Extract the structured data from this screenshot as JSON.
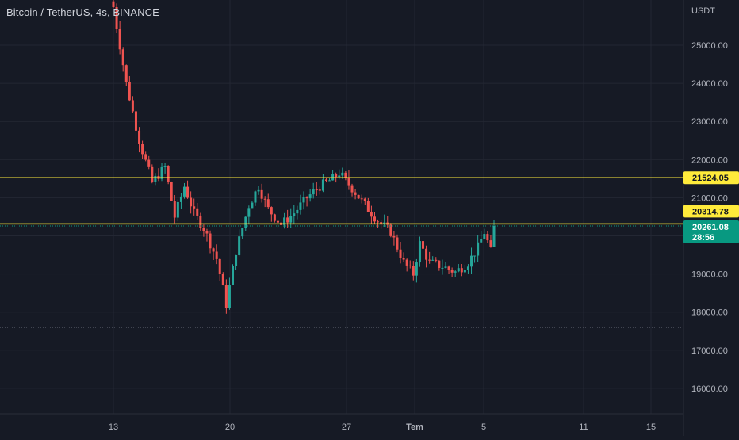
{
  "header": {
    "symbol_title": "Bitcoin / TetherUS, 4s, BINANCE"
  },
  "price_axis": {
    "currency": "USDT",
    "ticks": [
      16000,
      17000,
      18000,
      19000,
      20000,
      21000,
      22000,
      23000,
      24000,
      25000
    ]
  },
  "time_axis": {
    "labels": [
      "13",
      "20",
      "27",
      "Tem",
      "5",
      "11",
      "15"
    ]
  },
  "price_badges": {
    "upper_line": "21524.05",
    "lower_line": "20314.78",
    "last_price": "20261.08",
    "countdown": "28:56"
  },
  "colors": {
    "background": "#161a25",
    "grid": "#232733",
    "up": "#26a69a",
    "down": "#ef5350",
    "horizontal_line": "#ffeb3b",
    "last_price_badge": "#089981",
    "axis_text": "#b2b5be"
  },
  "chart_data": {
    "type": "candlestick",
    "title": "Bitcoin / TetherUS, 4s, BINANCE",
    "xlabel": "",
    "ylabel": "USDT",
    "ylim": [
      15500,
      26200
    ],
    "horizontal_lines": [
      21524.05,
      20314.78
    ],
    "dotted_support_level": 17600,
    "last_price": 20261.08,
    "waypoints": [
      {
        "t": 0,
        "p": 26000
      },
      {
        "t": 4,
        "p": 24000
      },
      {
        "t": 8,
        "p": 22500
      },
      {
        "t": 12,
        "p": 21400
      },
      {
        "t": 16,
        "p": 21800
      },
      {
        "t": 19,
        "p": 20500
      },
      {
        "t": 22,
        "p": 21300
      },
      {
        "t": 25,
        "p": 20600
      },
      {
        "t": 28,
        "p": 20200
      },
      {
        "t": 32,
        "p": 19400
      },
      {
        "t": 35,
        "p": 18200
      },
      {
        "t": 38,
        "p": 19600
      },
      {
        "t": 42,
        "p": 20800
      },
      {
        "t": 45,
        "p": 21300
      },
      {
        "t": 48,
        "p": 20700
      },
      {
        "t": 52,
        "p": 20300
      },
      {
        "t": 56,
        "p": 20600
      },
      {
        "t": 60,
        "p": 21000
      },
      {
        "t": 64,
        "p": 21300
      },
      {
        "t": 68,
        "p": 21500
      },
      {
        "t": 70,
        "p": 21650
      },
      {
        "t": 74,
        "p": 21250
      },
      {
        "t": 78,
        "p": 20800
      },
      {
        "t": 82,
        "p": 20400
      },
      {
        "t": 86,
        "p": 20100
      },
      {
        "t": 90,
        "p": 19300
      },
      {
        "t": 93,
        "p": 19000
      },
      {
        "t": 95,
        "p": 19800
      },
      {
        "t": 98,
        "p": 19300
      },
      {
        "t": 102,
        "p": 19200
      },
      {
        "t": 106,
        "p": 19050
      },
      {
        "t": 110,
        "p": 19300
      },
      {
        "t": 113,
        "p": 19700
      },
      {
        "t": 115,
        "p": 20100
      },
      {
        "t": 117,
        "p": 19600
      },
      {
        "t": 118,
        "p": 20261.08
      }
    ]
  }
}
